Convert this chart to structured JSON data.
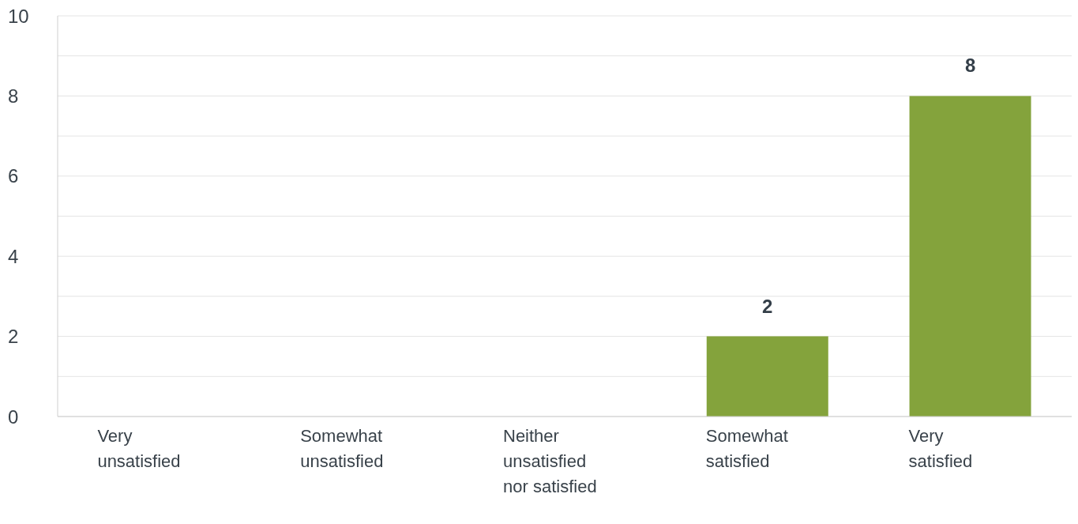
{
  "chart_data": {
    "type": "bar",
    "categories": [
      "Very unsatisfied",
      "Somewhat unsatisfied",
      "Neither unsatisfied nor satisfied",
      "Somewhat satisfied",
      "Very satisfied"
    ],
    "values": [
      0,
      0,
      0,
      2,
      8
    ],
    "value_labels": [
      null,
      null,
      null,
      "2",
      "8"
    ],
    "color": "#84a33c",
    "ylim": [
      0,
      10
    ],
    "yticks": [
      0,
      {
        "value": 1,
        "label": null
      },
      2,
      {
        "value": 3,
        "label": null
      },
      4,
      {
        "value": 5,
        "label": null
      },
      6,
      {
        "value": 7,
        "label": null
      },
      8,
      {
        "value": 9,
        "label": null
      },
      10
    ],
    "grid": "y",
    "legend": false
  }
}
